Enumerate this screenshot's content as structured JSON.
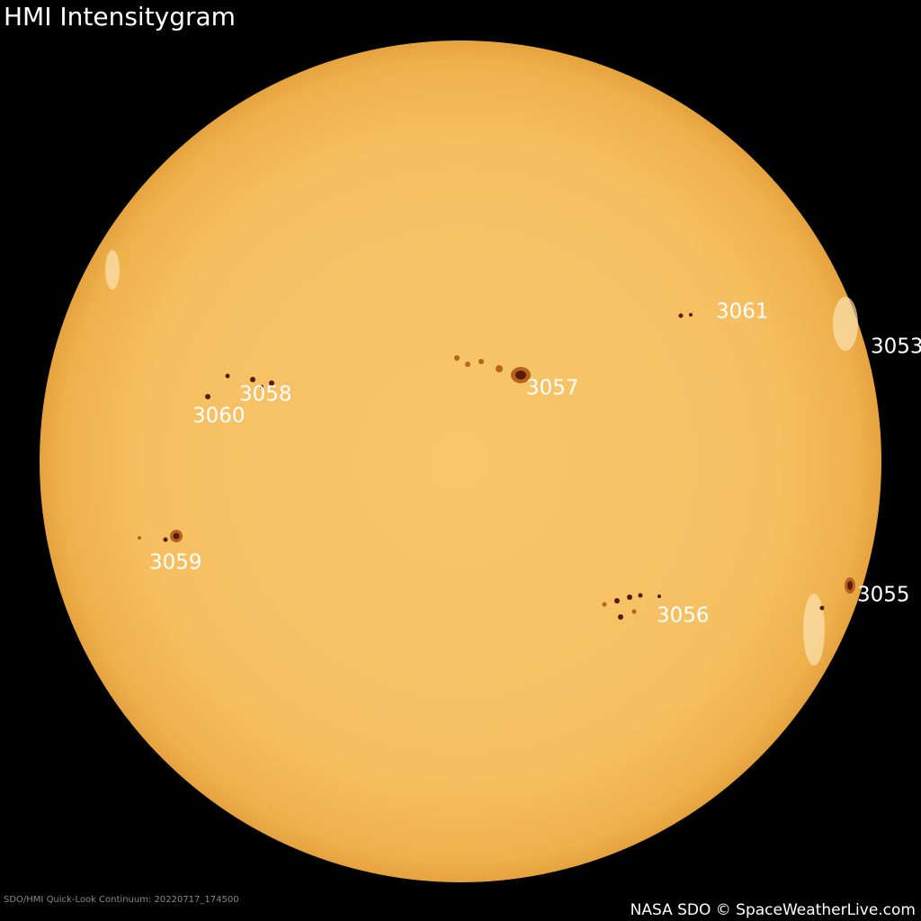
{
  "title": "HMI Intensitygram",
  "regions": [
    "3061",
    "3053",
    "3057",
    "3058",
    "3060",
    "3059",
    "3056",
    "3055"
  ],
  "footer": {
    "source": "SDO/HMI Quick-Look Continuum: 20220717_174500",
    "credit": "NASA SDO © SpaceWeatherLive.com"
  }
}
